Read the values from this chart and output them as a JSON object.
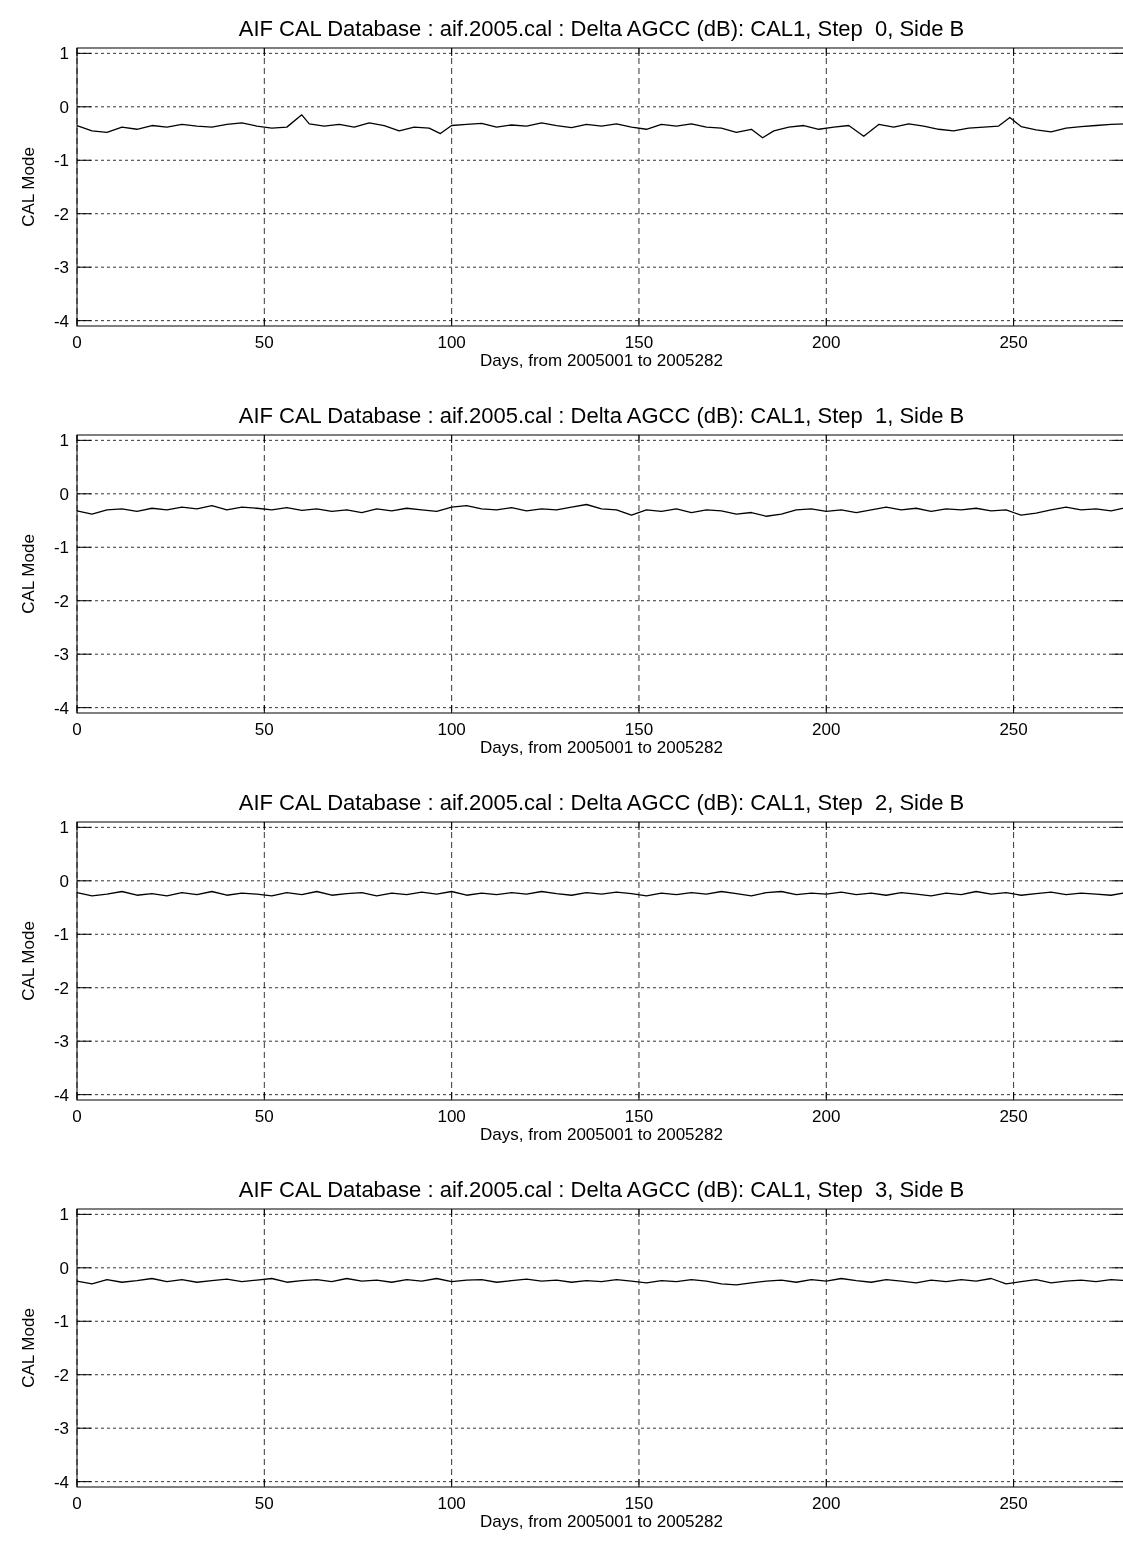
{
  "chart_data": [
    {
      "type": "line",
      "title": "AIF CAL Database : aif.2005.cal : Delta AGCC (dB): CAL1, Step  0, Side B",
      "xlabel": "Days, from 2005001 to 2005282",
      "ylabel": "CAL Mode",
      "xlim": [
        0,
        280
      ],
      "ylim": [
        -4.1,
        1.1
      ],
      "xticks": [
        0,
        50,
        100,
        150,
        200,
        250
      ],
      "yticks": [
        -4,
        -3,
        -2,
        -1,
        0,
        1
      ],
      "grid": true,
      "series": [
        {
          "color": "#000000",
          "x": [
            0,
            4,
            8,
            12,
            16,
            20,
            24,
            28,
            32,
            36,
            40,
            44,
            48,
            52,
            56,
            60,
            62,
            66,
            70,
            74,
            78,
            82,
            86,
            90,
            94,
            97,
            100,
            104,
            108,
            112,
            116,
            120,
            124,
            128,
            132,
            136,
            140,
            144,
            148,
            152,
            156,
            160,
            164,
            168,
            172,
            176,
            180,
            183,
            186,
            190,
            194,
            198,
            202,
            206,
            210,
            214,
            218,
            222,
            226,
            230,
            234,
            238,
            242,
            246,
            249,
            252,
            256,
            260,
            264,
            268,
            272,
            276,
            280
          ],
          "values": [
            -0.35,
            -0.45,
            -0.48,
            -0.38,
            -0.42,
            -0.35,
            -0.38,
            -0.33,
            -0.36,
            -0.38,
            -0.33,
            -0.3,
            -0.36,
            -0.4,
            -0.38,
            -0.15,
            -0.32,
            -0.36,
            -0.33,
            -0.38,
            -0.3,
            -0.35,
            -0.45,
            -0.38,
            -0.4,
            -0.5,
            -0.35,
            -0.33,
            -0.31,
            -0.38,
            -0.34,
            -0.36,
            -0.3,
            -0.35,
            -0.39,
            -0.33,
            -0.36,
            -0.32,
            -0.38,
            -0.42,
            -0.33,
            -0.36,
            -0.32,
            -0.38,
            -0.4,
            -0.48,
            -0.42,
            -0.58,
            -0.45,
            -0.38,
            -0.35,
            -0.42,
            -0.38,
            -0.35,
            -0.55,
            -0.33,
            -0.38,
            -0.32,
            -0.36,
            -0.42,
            -0.45,
            -0.4,
            -0.38,
            -0.36,
            -0.2,
            -0.37,
            -0.43,
            -0.47,
            -0.4,
            -0.37,
            -0.35,
            -0.33,
            -0.32
          ]
        }
      ]
    },
    {
      "type": "line",
      "title": "AIF CAL Database : aif.2005.cal : Delta AGCC (dB): CAL1, Step  1, Side B",
      "xlabel": "Days, from 2005001 to 2005282",
      "ylabel": "CAL Mode",
      "xlim": [
        0,
        280
      ],
      "ylim": [
        -4.1,
        1.1
      ],
      "xticks": [
        0,
        50,
        100,
        150,
        200,
        250
      ],
      "yticks": [
        -4,
        -3,
        -2,
        -1,
        0,
        1
      ],
      "grid": true,
      "series": [
        {
          "color": "#000000",
          "x": [
            0,
            4,
            8,
            12,
            16,
            20,
            24,
            28,
            32,
            36,
            40,
            44,
            48,
            52,
            56,
            60,
            64,
            68,
            72,
            76,
            80,
            84,
            88,
            92,
            96,
            100,
            104,
            108,
            112,
            116,
            120,
            124,
            128,
            132,
            136,
            140,
            144,
            148,
            152,
            156,
            160,
            164,
            168,
            172,
            176,
            180,
            184,
            188,
            192,
            196,
            200,
            204,
            208,
            212,
            216,
            220,
            224,
            228,
            232,
            236,
            240,
            244,
            248,
            252,
            256,
            260,
            264,
            268,
            272,
            276,
            280
          ],
          "values": [
            -0.32,
            -0.38,
            -0.3,
            -0.28,
            -0.33,
            -0.27,
            -0.3,
            -0.25,
            -0.28,
            -0.22,
            -0.3,
            -0.25,
            -0.27,
            -0.3,
            -0.26,
            -0.31,
            -0.28,
            -0.33,
            -0.3,
            -0.35,
            -0.28,
            -0.32,
            -0.27,
            -0.3,
            -0.33,
            -0.25,
            -0.22,
            -0.28,
            -0.3,
            -0.26,
            -0.32,
            -0.28,
            -0.3,
            -0.25,
            -0.2,
            -0.28,
            -0.3,
            -0.4,
            -0.3,
            -0.33,
            -0.28,
            -0.35,
            -0.3,
            -0.32,
            -0.38,
            -0.35,
            -0.42,
            -0.38,
            -0.3,
            -0.28,
            -0.33,
            -0.3,
            -0.35,
            -0.3,
            -0.25,
            -0.3,
            -0.27,
            -0.33,
            -0.28,
            -0.3,
            -0.27,
            -0.32,
            -0.3,
            -0.4,
            -0.36,
            -0.3,
            -0.25,
            -0.3,
            -0.28,
            -0.32,
            -0.26
          ]
        }
      ]
    },
    {
      "type": "line",
      "title": "AIF CAL Database : aif.2005.cal : Delta AGCC (dB): CAL1, Step  2, Side B",
      "xlabel": "Days, from 2005001 to 2005282",
      "ylabel": "CAL Mode",
      "xlim": [
        0,
        280
      ],
      "ylim": [
        -4.1,
        1.1
      ],
      "xticks": [
        0,
        50,
        100,
        150,
        200,
        250
      ],
      "yticks": [
        -4,
        -3,
        -2,
        -1,
        0,
        1
      ],
      "grid": true,
      "series": [
        {
          "color": "#000000",
          "x": [
            0,
            4,
            8,
            12,
            16,
            20,
            24,
            28,
            32,
            36,
            40,
            44,
            48,
            52,
            56,
            60,
            64,
            68,
            72,
            76,
            80,
            84,
            88,
            92,
            96,
            100,
            104,
            108,
            112,
            116,
            120,
            124,
            128,
            132,
            136,
            140,
            144,
            148,
            152,
            156,
            160,
            164,
            168,
            172,
            176,
            180,
            184,
            188,
            192,
            196,
            200,
            204,
            208,
            212,
            216,
            220,
            224,
            228,
            232,
            236,
            240,
            244,
            248,
            252,
            256,
            260,
            264,
            268,
            272,
            276,
            280
          ],
          "values": [
            -0.22,
            -0.28,
            -0.25,
            -0.2,
            -0.27,
            -0.24,
            -0.28,
            -0.22,
            -0.26,
            -0.2,
            -0.27,
            -0.23,
            -0.25,
            -0.28,
            -0.22,
            -0.26,
            -0.2,
            -0.27,
            -0.24,
            -0.22,
            -0.28,
            -0.23,
            -0.26,
            -0.21,
            -0.25,
            -0.2,
            -0.27,
            -0.23,
            -0.26,
            -0.22,
            -0.25,
            -0.2,
            -0.24,
            -0.27,
            -0.22,
            -0.25,
            -0.21,
            -0.24,
            -0.28,
            -0.23,
            -0.26,
            -0.22,
            -0.25,
            -0.2,
            -0.24,
            -0.28,
            -0.22,
            -0.2,
            -0.26,
            -0.23,
            -0.25,
            -0.21,
            -0.26,
            -0.23,
            -0.27,
            -0.22,
            -0.25,
            -0.28,
            -0.23,
            -0.26,
            -0.2,
            -0.25,
            -0.22,
            -0.27,
            -0.24,
            -0.21,
            -0.26,
            -0.23,
            -0.25,
            -0.27,
            -0.22
          ]
        }
      ]
    },
    {
      "type": "line",
      "title": "AIF CAL Database : aif.2005.cal : Delta AGCC (dB): CAL1, Step  3, Side B",
      "xlabel": "Days, from 2005001 to 2005282",
      "ylabel": "CAL Mode",
      "xlim": [
        0,
        280
      ],
      "ylim": [
        -4.1,
        1.1
      ],
      "xticks": [
        0,
        50,
        100,
        150,
        200,
        250
      ],
      "yticks": [
        -4,
        -3,
        -2,
        -1,
        0,
        1
      ],
      "grid": true,
      "series": [
        {
          "color": "#000000",
          "x": [
            0,
            4,
            8,
            12,
            16,
            20,
            24,
            28,
            32,
            36,
            40,
            44,
            48,
            52,
            56,
            60,
            64,
            68,
            72,
            76,
            80,
            84,
            88,
            92,
            96,
            100,
            104,
            108,
            112,
            116,
            120,
            124,
            128,
            132,
            136,
            140,
            144,
            148,
            152,
            156,
            160,
            164,
            168,
            172,
            176,
            180,
            184,
            188,
            192,
            196,
            200,
            204,
            208,
            212,
            216,
            220,
            224,
            228,
            232,
            236,
            240,
            244,
            248,
            252,
            256,
            260,
            264,
            268,
            272,
            276,
            280
          ],
          "values": [
            -0.25,
            -0.3,
            -0.22,
            -0.27,
            -0.24,
            -0.2,
            -0.26,
            -0.22,
            -0.27,
            -0.24,
            -0.21,
            -0.26,
            -0.23,
            -0.2,
            -0.27,
            -0.24,
            -0.22,
            -0.26,
            -0.2,
            -0.25,
            -0.23,
            -0.27,
            -0.22,
            -0.25,
            -0.2,
            -0.26,
            -0.23,
            -0.22,
            -0.27,
            -0.24,
            -0.21,
            -0.25,
            -0.23,
            -0.27,
            -0.24,
            -0.26,
            -0.22,
            -0.25,
            -0.28,
            -0.24,
            -0.26,
            -0.22,
            -0.25,
            -0.3,
            -0.32,
            -0.28,
            -0.25,
            -0.23,
            -0.27,
            -0.22,
            -0.25,
            -0.2,
            -0.24,
            -0.27,
            -0.22,
            -0.25,
            -0.28,
            -0.23,
            -0.26,
            -0.22,
            -0.25,
            -0.2,
            -0.3,
            -0.26,
            -0.22,
            -0.28,
            -0.25,
            -0.23,
            -0.26,
            -0.22,
            -0.24
          ]
        }
      ]
    }
  ]
}
